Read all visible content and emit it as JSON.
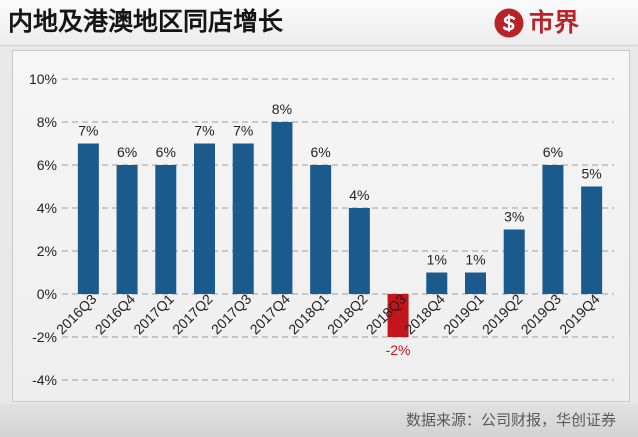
{
  "header": {
    "logo_text": "市界",
    "logo_color": "#b8232a"
  },
  "chart_data": {
    "type": "bar",
    "title": "内地及港澳地区同店增长",
    "categories": [
      "2016Q3",
      "2016Q4",
      "2017Q1",
      "2017Q2",
      "2017Q3",
      "2017Q4",
      "2018Q1",
      "2018Q2",
      "2018Q3",
      "2018Q4",
      "2019Q1",
      "2019Q2",
      "2019Q3",
      "2019Q4"
    ],
    "values": [
      7,
      6,
      6,
      7,
      7,
      8,
      6,
      4,
      -2,
      1,
      1,
      3,
      6,
      5
    ],
    "data_labels": [
      "7%",
      "6%",
      "6%",
      "7%",
      "7%",
      "8%",
      "6%",
      "4%",
      "-2%",
      "1%",
      "1%",
      "3%",
      "6%",
      "5%"
    ],
    "ylim": [
      -4,
      10
    ],
    "yticks": [
      10,
      8,
      6,
      4,
      2,
      0,
      -2,
      -4
    ],
    "ytick_labels": [
      "10%",
      "8%",
      "6%",
      "4%",
      "2%",
      "0%",
      "-2%",
      "-4%"
    ],
    "grid": true,
    "colors": {
      "positive": "#1b5a8c",
      "negative": "#c3161c"
    }
  },
  "footer": {
    "source": "数据来源：公司财报，华创证券"
  }
}
